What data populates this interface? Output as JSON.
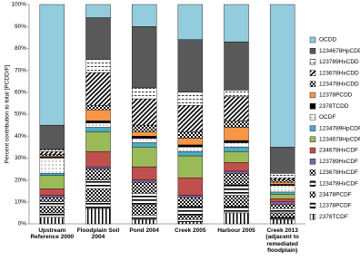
{
  "chart_data": {
    "type": "stacked_bar",
    "y_label": "Percent contribution to total [PCDD/F]",
    "categories": [
      "Upstream Reference 2000",
      "Floodplain Soil 2004",
      "Pond 2004",
      "Creek 2005",
      "Harbour 2005",
      "Creek 2013 (adjacent to remediated floodplain)"
    ],
    "ylim": [
      0,
      100
    ],
    "yticks": [
      {
        "value": 0,
        "label": "0%"
      },
      {
        "value": 10,
        "label": "10%"
      },
      {
        "value": 20,
        "label": "20%"
      },
      {
        "value": 30,
        "label": "30%"
      },
      {
        "value": 40,
        "label": "40%"
      },
      {
        "value": 50,
        "label": "50%"
      },
      {
        "value": 60,
        "label": "60%"
      },
      {
        "value": 70,
        "label": "70%"
      },
      {
        "value": 80,
        "label": "80%"
      },
      {
        "value": 90,
        "label": "90%"
      },
      {
        "value": 100,
        "label": "100%"
      }
    ],
    "grid": false,
    "legend": "right",
    "series": [
      {
        "name": "2378TCDF",
        "color": "#000000",
        "pattern": "vstripes",
        "values": [
          3,
          7,
          2,
          1,
          5,
          2
        ]
      },
      {
        "name": "12378PCDF",
        "color": "#000000",
        "pattern": "hstripes",
        "values": [
          2,
          3,
          2,
          1,
          3,
          1
        ]
      },
      {
        "name": "23478PCDF",
        "color": "#000000",
        "pattern": "checker",
        "values": [
          3,
          6,
          5,
          2,
          5,
          2
        ]
      },
      {
        "name": "123478HxCDF",
        "color": "#000000",
        "pattern": "hstripes",
        "values": [
          2,
          4,
          5,
          4,
          5,
          2
        ]
      },
      {
        "name": "123678HxCDF",
        "color": "#000000",
        "pattern": "checker",
        "values": [
          2,
          5,
          5,
          4,
          5,
          2
        ]
      },
      {
        "name": "123789HxCDF",
        "color": "#8064a2",
        "pattern": "solid",
        "values": [
          1,
          1,
          1,
          1,
          1,
          1
        ]
      },
      {
        "name": "234678HxCDF",
        "color": "#c0504d",
        "pattern": "solid",
        "values": [
          3,
          7,
          6,
          8,
          4,
          1.5
        ]
      },
      {
        "name": "1234678HpCDF",
        "color": "#9bbb59",
        "pattern": "solid",
        "values": [
          6,
          9,
          9,
          10,
          5,
          2
        ]
      },
      {
        "name": "1234789HpCDF",
        "color": "#4bacc6",
        "pattern": "solid",
        "values": [
          1,
          2,
          2,
          2,
          2,
          1
        ]
      },
      {
        "name": "OCDF",
        "color": "#000000",
        "pattern": "dots",
        "values": [
          7,
          2,
          2,
          2,
          2,
          3
        ]
      },
      {
        "name": "2378TCDD",
        "color": "#000000",
        "pattern": "solid",
        "values": [
          0.5,
          1,
          1,
          1,
          1,
          0.5
        ]
      },
      {
        "name": "12378PCDD",
        "color": "#f79646",
        "pattern": "solid",
        "values": [
          0.5,
          5,
          2,
          3,
          6,
          1
        ]
      },
      {
        "name": "123478HxCDD",
        "color": "#000000",
        "pattern": "checker",
        "values": [
          0.5,
          2,
          3,
          3,
          3,
          1
        ]
      },
      {
        "name": "123678HxCDD",
        "color": "#000000",
        "pattern": "diagonal",
        "values": [
          1.5,
          15,
          12,
          12,
          11,
          1
        ]
      },
      {
        "name": "123789HxCDD",
        "color": "#000000",
        "pattern": "dashes",
        "values": [
          1,
          6,
          5,
          6,
          3,
          2
        ]
      },
      {
        "name": "1234678HpCDD",
        "color": "#595959",
        "pattern": "solid",
        "values": [
          11,
          19,
          28,
          24,
          22,
          12
        ]
      },
      {
        "name": "OCDD",
        "color": "#93cddd",
        "pattern": "solid",
        "values": [
          55,
          6,
          10,
          16,
          17,
          65
        ]
      }
    ]
  }
}
